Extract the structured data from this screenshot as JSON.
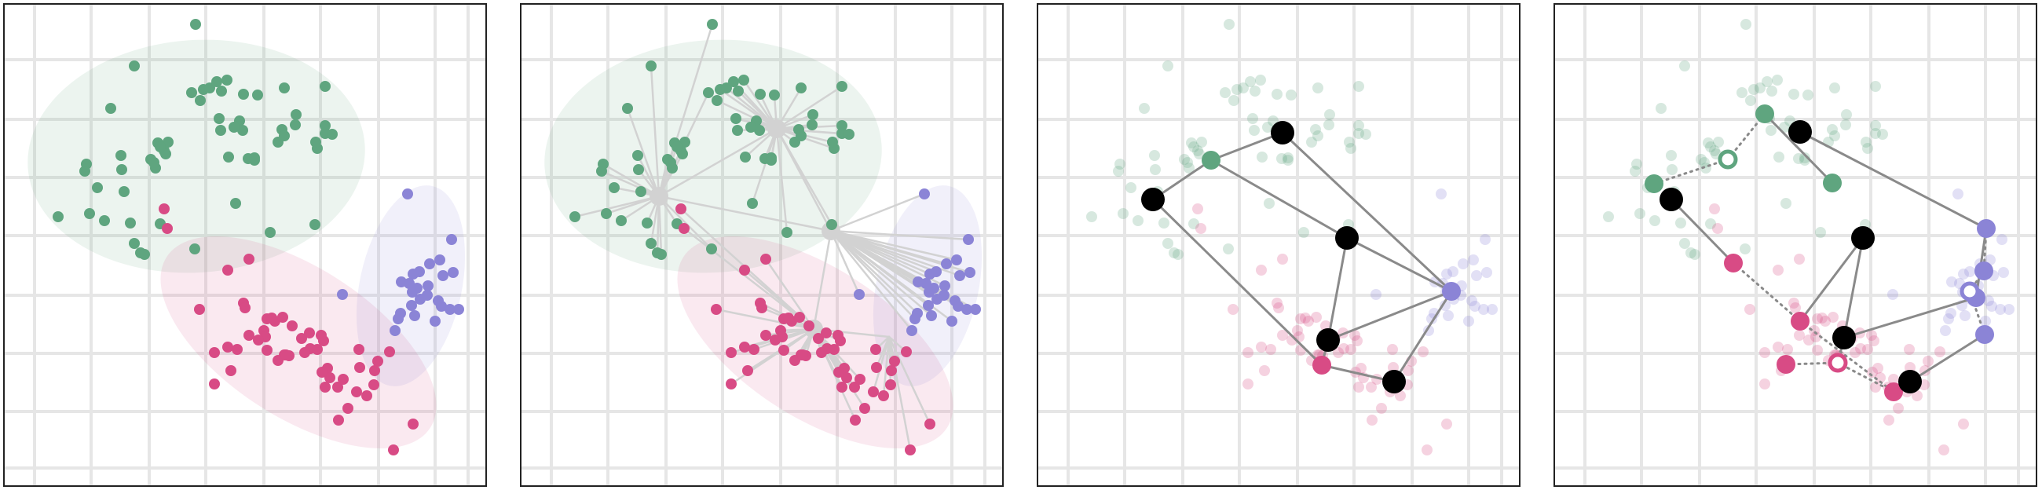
{
  "figure": {
    "panels": [
      {
        "name": "panel-1-clusters"
      },
      {
        "name": "panel-2-cluster-hubs"
      },
      {
        "name": "panel-3-graph"
      },
      {
        "name": "panel-4-graph-with-links"
      }
    ]
  },
  "colors": {
    "green": "#5fa57f",
    "pink": "#d84b85",
    "purple": "#8b84d6",
    "black": "#000000",
    "hub": "#d2d2d2",
    "edge": "#8a8a8a",
    "grid": "#e6e6e6"
  }
}
